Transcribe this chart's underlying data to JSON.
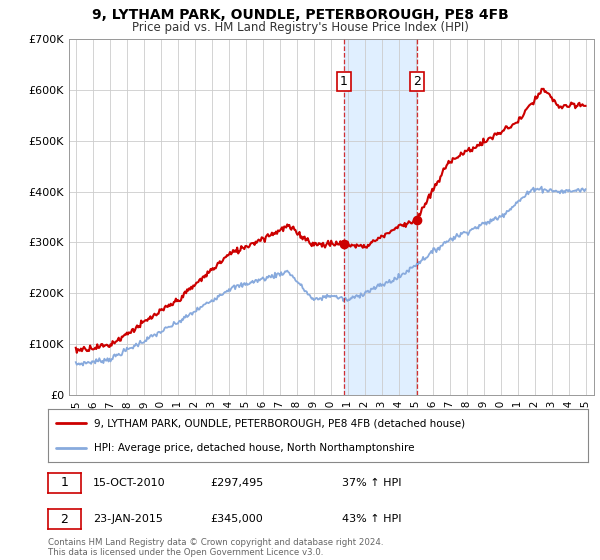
{
  "title": "9, LYTHAM PARK, OUNDLE, PETERBOROUGH, PE8 4FB",
  "subtitle": "Price paid vs. HM Land Registry's House Price Index (HPI)",
  "ylim": [
    0,
    700000
  ],
  "yticks": [
    0,
    100000,
    200000,
    300000,
    400000,
    500000,
    600000,
    700000
  ],
  "ytick_labels": [
    "£0",
    "£100K",
    "£200K",
    "£300K",
    "£400K",
    "£500K",
    "£600K",
    "£700K"
  ],
  "bg_color": "#ffffff",
  "plot_bg_color": "#ffffff",
  "grid_color": "#cccccc",
  "red_color": "#cc0000",
  "blue_color": "#88aadd",
  "shade_color": "#ddeeff",
  "legend_label_red": "9, LYTHAM PARK, OUNDLE, PETERBOROUGH, PE8 4FB (detached house)",
  "legend_label_blue": "HPI: Average price, detached house, North Northamptonshire",
  "sale1_x": 2010.79,
  "sale1_y": 297495,
  "sale1_label": "1",
  "sale2_x": 2015.07,
  "sale2_y": 345000,
  "sale2_label": "2",
  "table_row1": [
    "1",
    "15-OCT-2010",
    "£297,495",
    "37% ↑ HPI"
  ],
  "table_row2": [
    "2",
    "23-JAN-2015",
    "£345,000",
    "43% ↑ HPI"
  ],
  "footnote": "Contains HM Land Registry data © Crown copyright and database right 2024.\nThis data is licensed under the Open Government Licence v3.0.",
  "xmin": 1994.6,
  "xmax": 2025.5
}
